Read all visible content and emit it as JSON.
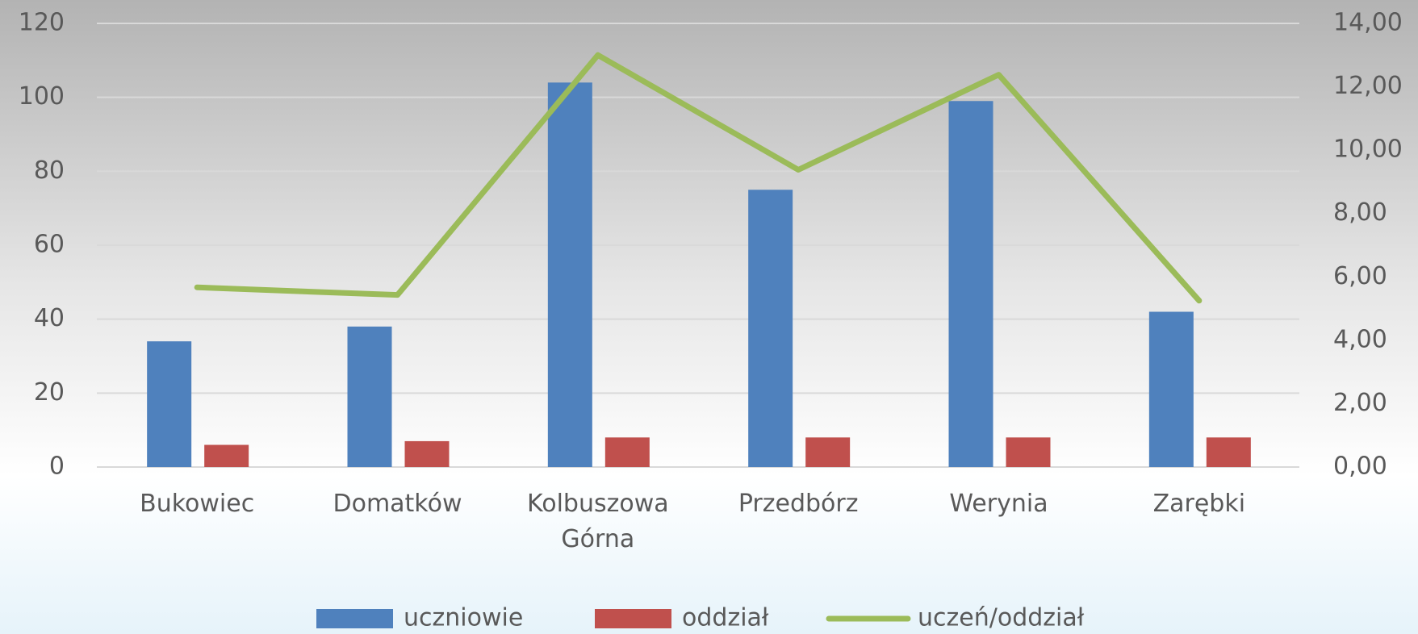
{
  "chart_data": {
    "type": "bar-line",
    "categories": [
      "Bukowiec",
      "Domatków",
      "Kolbuszowa Górna",
      "Przedbórz",
      "Werynia",
      "Zarębki"
    ],
    "series": [
      {
        "name": "uczniowie",
        "type": "bar",
        "color": "#4f81bd",
        "values": [
          34,
          38,
          104,
          75,
          99,
          42
        ]
      },
      {
        "name": "oddział",
        "type": "bar",
        "color": "#c0504d",
        "values": [
          6,
          7,
          8,
          8,
          8,
          8
        ]
      },
      {
        "name": "uczeń/oddział",
        "type": "line",
        "axis": "y2",
        "color": "#9bbb59",
        "values": [
          5.67,
          5.43,
          13.0,
          9.38,
          12.38,
          5.25
        ]
      }
    ],
    "ylim": [
      0,
      120
    ],
    "yticks": [
      0,
      20,
      40,
      60,
      80,
      100,
      120
    ],
    "y2lim": [
      0,
      14
    ],
    "y2ticks": [
      {
        "value": 0,
        "label": "0,00"
      },
      {
        "value": 2,
        "label": "2,00"
      },
      {
        "value": 4,
        "label": "4,00"
      },
      {
        "value": 6,
        "label": "6,00"
      },
      {
        "value": 8,
        "label": "8,00"
      },
      {
        "value": 10,
        "label": "10,00"
      },
      {
        "value": 12,
        "label": "12,00"
      },
      {
        "value": 14,
        "label": "14,00"
      }
    ],
    "grid": true,
    "legend": "bottom"
  }
}
